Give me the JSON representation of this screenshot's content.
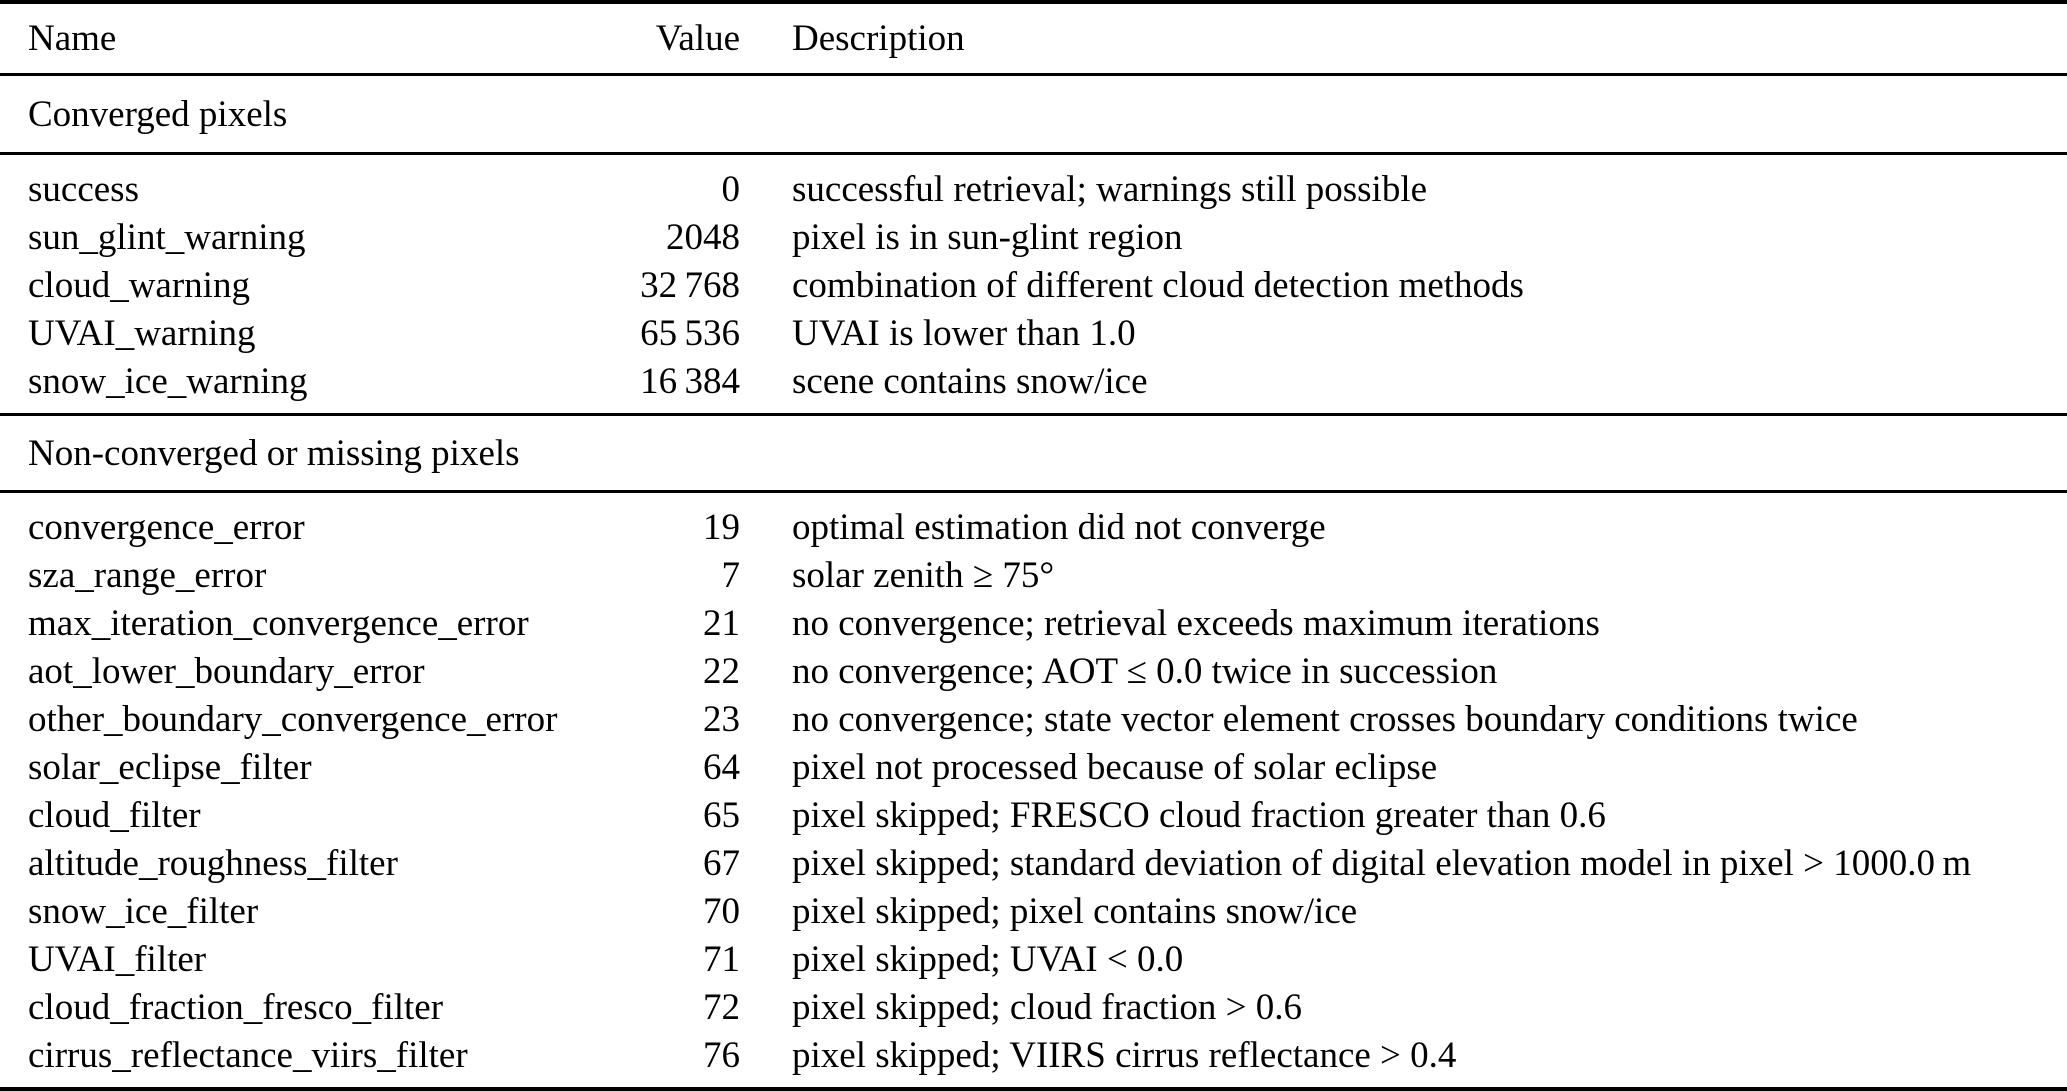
{
  "table": {
    "columns": [
      {
        "key": "name",
        "label": "Name"
      },
      {
        "key": "value",
        "label": "Value"
      },
      {
        "key": "description",
        "label": "Description"
      }
    ],
    "sections": [
      {
        "title": "Converged pixels",
        "rows": [
          {
            "name": "success",
            "value": "0",
            "description": "successful retrieval; warnings still possible"
          },
          {
            "name": "sun_glint_warning",
            "value": "2048",
            "description": "pixel is in sun-glint region"
          },
          {
            "name": "cloud_warning",
            "value": "32 768",
            "description": "combination of different cloud detection methods"
          },
          {
            "name": "UVAI_warning",
            "value": "65 536",
            "description": "UVAI is lower than 1.0"
          },
          {
            "name": "snow_ice_warning",
            "value": "16 384",
            "description": "scene contains snow/ice"
          }
        ]
      },
      {
        "title": "Non-converged or missing pixels",
        "rows": [
          {
            "name": "convergence_error",
            "value": "19",
            "description": "optimal estimation did not converge"
          },
          {
            "name": "sza_range_error",
            "value": "7",
            "description": "solar zenith ≥ 75°"
          },
          {
            "name": "max_iteration_convergence_error",
            "value": "21",
            "description": "no convergence; retrieval exceeds maximum iterations"
          },
          {
            "name": "aot_lower_boundary_error",
            "value": "22",
            "description": "no convergence; AOT ≤ 0.0 twice in succession"
          },
          {
            "name": "other_boundary_convergence_error",
            "value": "23",
            "description": "no convergence; state vector element crosses boundary conditions twice"
          },
          {
            "name": "solar_eclipse_filter",
            "value": "64",
            "description": "pixel not processed because of solar eclipse"
          },
          {
            "name": "cloud_filter",
            "value": "65",
            "description": "pixel skipped; FRESCO cloud fraction greater than 0.6"
          },
          {
            "name": "altitude_roughness_filter",
            "value": "67",
            "description": "pixel skipped; standard deviation of digital elevation model in pixel > 1000.0 m"
          },
          {
            "name": "snow_ice_filter",
            "value": "70",
            "description": "pixel skipped; pixel contains snow/ice"
          },
          {
            "name": "UVAI_filter",
            "value": "71",
            "description": "pixel skipped; UVAI < 0.0"
          },
          {
            "name": "cloud_fraction_fresco_filter",
            "value": "72",
            "description": "pixel skipped; cloud fraction > 0.6"
          },
          {
            "name": "cirrus_reflectance_viirs_filter",
            "value": "76",
            "description": "pixel skipped; VIIRS cirrus reflectance > 0.4"
          }
        ]
      }
    ],
    "colors": {
      "background": "#ffffff",
      "text": "#000000",
      "rule": "#000000"
    }
  }
}
